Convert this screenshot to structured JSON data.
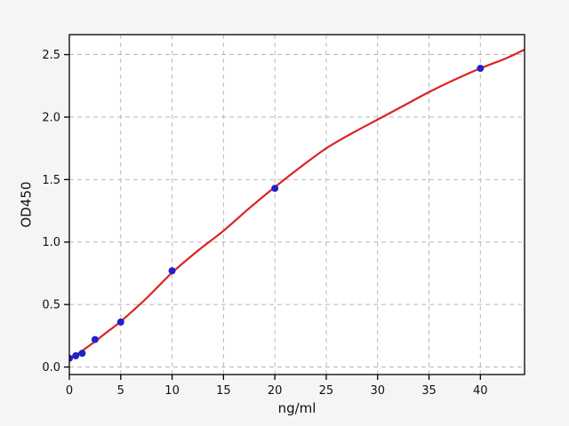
{
  "figure": {
    "background": "#f5f5f5",
    "plot_background": "#ffffff",
    "grid_color": "#b9b9b9",
    "spine_color": "#000000",
    "tick_color": "#000000",
    "text_color": "#111111"
  },
  "chart_data": {
    "type": "scatter",
    "title": "",
    "xlabel": "ng/ml",
    "ylabel": "OD450",
    "grid": true,
    "legend_position": "none",
    "xlim": [
      0,
      44.3
    ],
    "ylim": [
      -0.06,
      2.66
    ],
    "x_ticks": {
      "values": [
        0,
        5,
        10,
        15,
        20,
        25,
        30,
        35,
        40
      ],
      "labels": [
        "0",
        "5",
        "10",
        "15",
        "20",
        "25",
        "30",
        "35",
        "40"
      ]
    },
    "y_ticks": {
      "values": [
        0.0,
        0.5,
        1.0,
        1.5,
        2.0,
        2.5
      ],
      "labels": [
        "0.0",
        "0.5",
        "1.0",
        "1.5",
        "2.0",
        "2.5"
      ]
    },
    "series": [
      {
        "name": "standard-points",
        "type": "scatter",
        "marker": "circle",
        "color": "#2121cc",
        "marker_radius": 4,
        "x": [
          0,
          0.625,
          1.25,
          2.5,
          5,
          10,
          20,
          40
        ],
        "y": [
          0.07,
          0.09,
          0.11,
          0.22,
          0.36,
          0.77,
          1.43,
          2.39
        ]
      },
      {
        "name": "fit-curve",
        "type": "line",
        "color": "#dd2222",
        "line_width": 2.2,
        "x": [
          0,
          1.25,
          2.5,
          3.75,
          5,
          7.5,
          10,
          12.5,
          15,
          17.5,
          20,
          22.5,
          25,
          27.5,
          30,
          32.5,
          35,
          37.5,
          40,
          42.5,
          44.3
        ],
        "y": [
          0.065,
          0.13,
          0.205,
          0.285,
          0.365,
          0.55,
          0.755,
          0.93,
          1.09,
          1.27,
          1.44,
          1.6,
          1.75,
          1.87,
          1.98,
          2.09,
          2.2,
          2.3,
          2.39,
          2.47,
          2.54
        ]
      }
    ]
  }
}
